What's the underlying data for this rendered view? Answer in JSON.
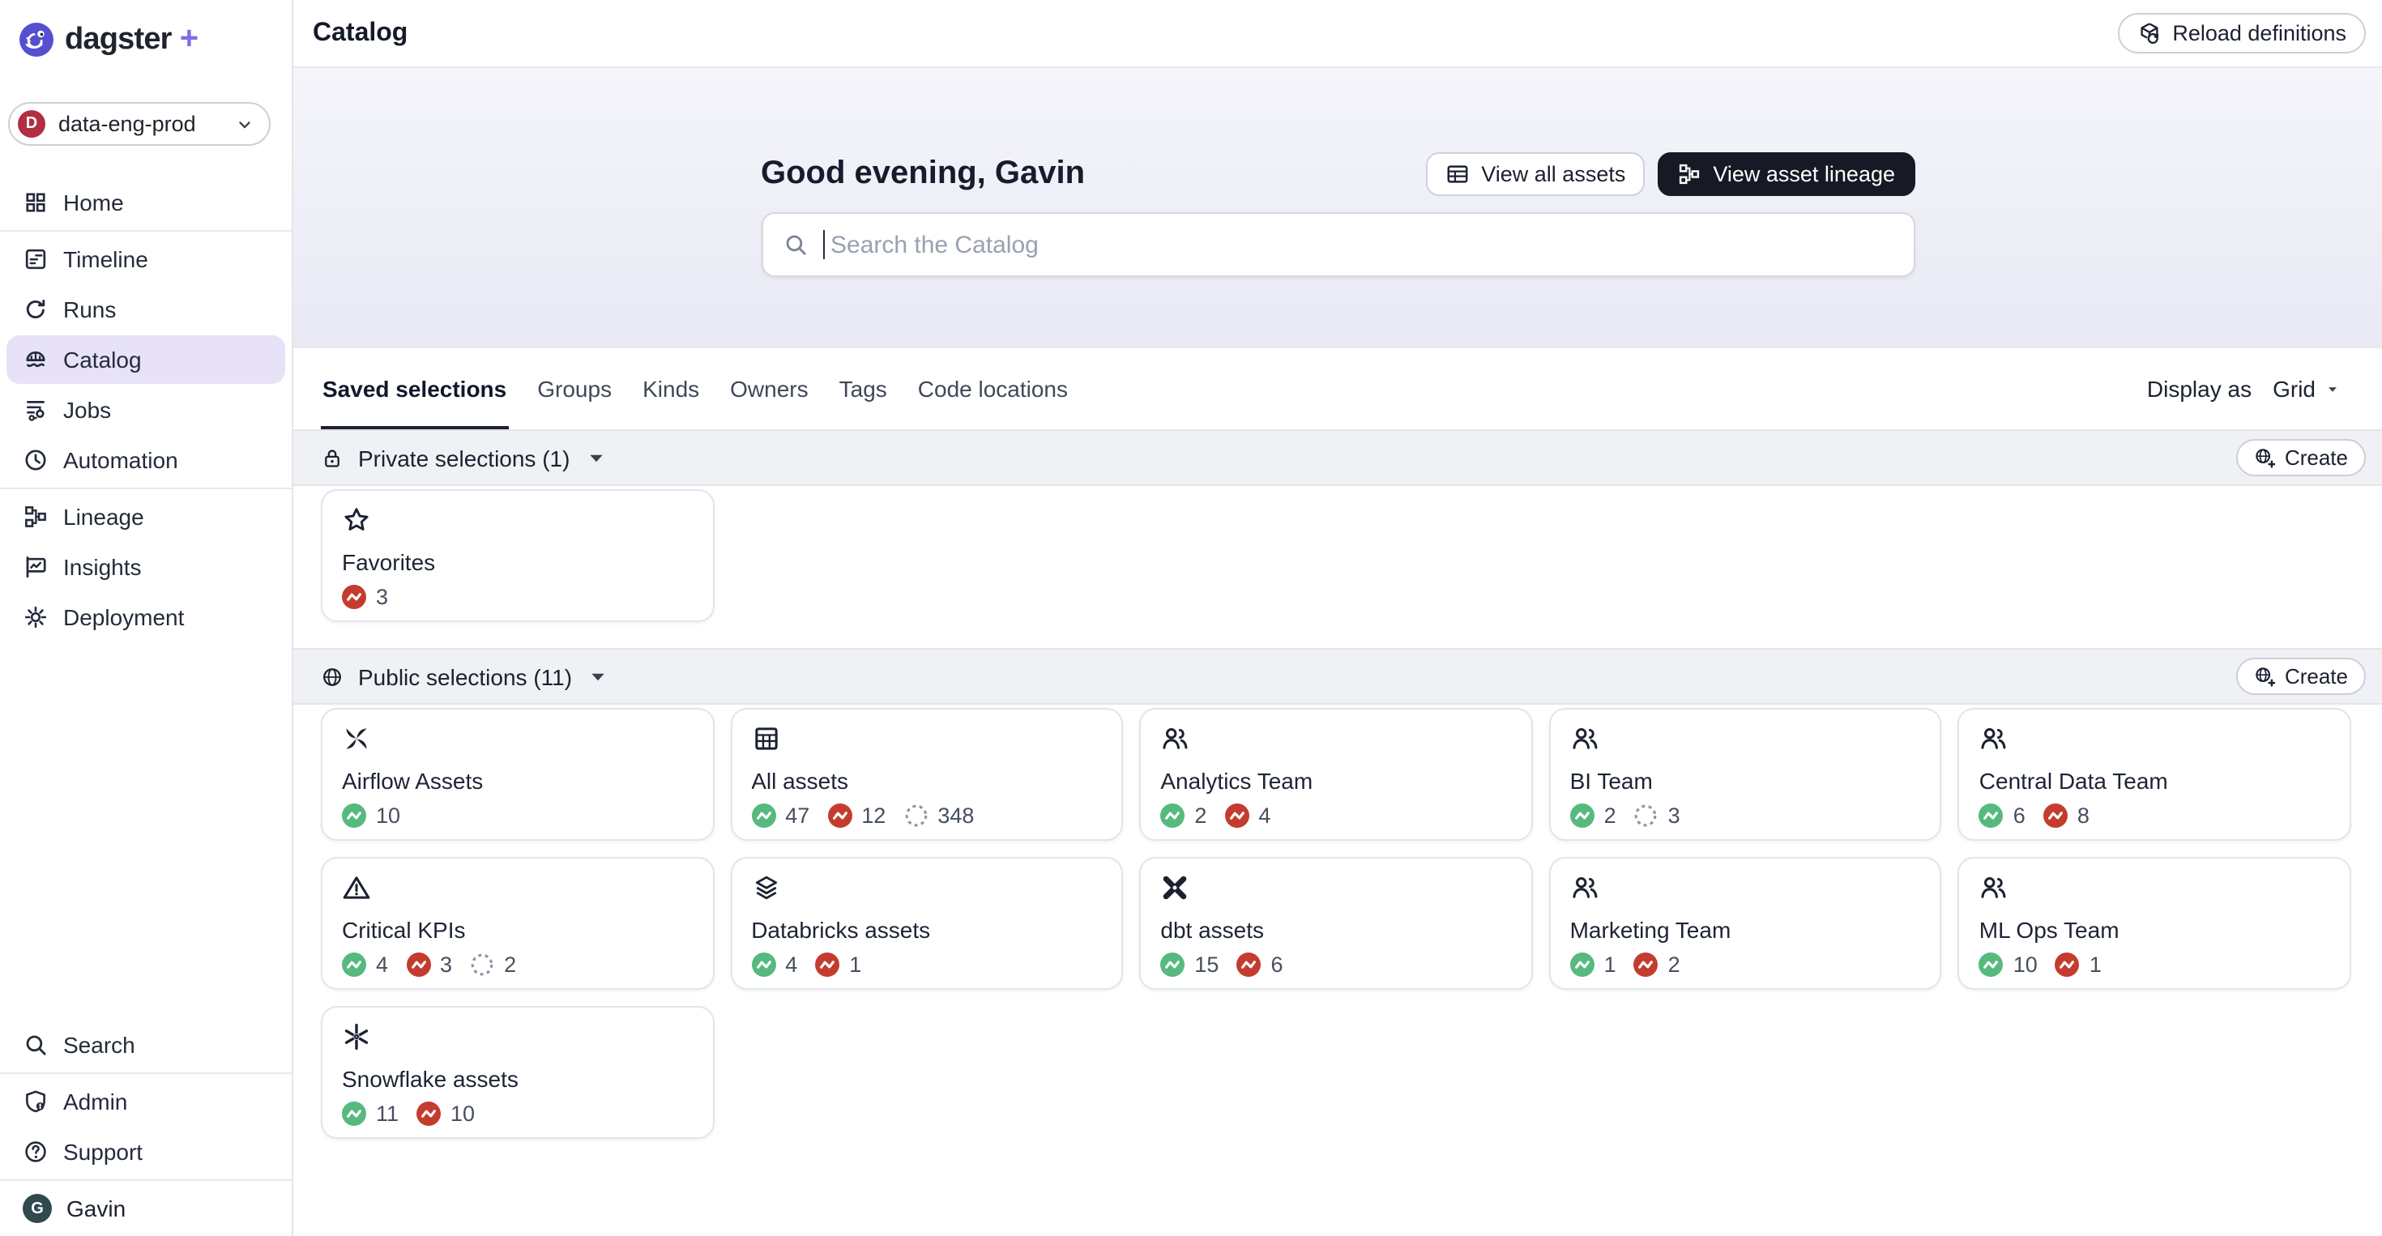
{
  "brand": {
    "name": "dagster",
    "plus": "+"
  },
  "deployment_switcher": {
    "label": "data-eng-prod",
    "avatar_letter": "D",
    "avatar_color": "#b32e40"
  },
  "sidebar": {
    "groups": [
      [
        {
          "label": "Home",
          "icon": "home"
        }
      ],
      [
        {
          "label": "Timeline",
          "icon": "timeline"
        },
        {
          "label": "Runs",
          "icon": "runs"
        },
        {
          "label": "Catalog",
          "icon": "catalog",
          "active": true
        },
        {
          "label": "Jobs",
          "icon": "jobs"
        },
        {
          "label": "Automation",
          "icon": "automation"
        }
      ],
      [
        {
          "label": "Lineage",
          "icon": "lineage"
        },
        {
          "label": "Insights",
          "icon": "insights"
        },
        {
          "label": "Deployment",
          "icon": "deployment"
        }
      ]
    ],
    "bottom_groups": [
      [
        {
          "label": "Search",
          "icon": "search"
        }
      ],
      [
        {
          "label": "Admin",
          "icon": "admin"
        },
        {
          "label": "Support",
          "icon": "support"
        }
      ]
    ],
    "user": {
      "name": "Gavin",
      "avatar_letter": "G",
      "avatar_color": "#30494e"
    }
  },
  "header": {
    "title": "Catalog",
    "reload_label": "Reload definitions"
  },
  "hero": {
    "greeting": "Good evening, Gavin",
    "view_all_assets_label": "View all assets",
    "view_asset_lineage_label": "View asset lineage",
    "search_placeholder": "Search the Catalog"
  },
  "tabs": {
    "items": [
      "Saved selections",
      "Groups",
      "Kinds",
      "Owners",
      "Tags",
      "Code locations"
    ],
    "active": "Saved selections",
    "display_as_label": "Display as",
    "display_as_value": "Grid"
  },
  "sections": [
    {
      "id": "private",
      "icon": "lock",
      "title": "Private selections (1)",
      "create_label": "Create",
      "cards": [
        {
          "title": "Favorites",
          "icon": "star",
          "statuses": [
            {
              "type": "failed",
              "count": 3
            }
          ]
        }
      ]
    },
    {
      "id": "public",
      "icon": "globe",
      "title": "Public selections (11)",
      "create_label": "Create",
      "cards": [
        {
          "title": "Airflow Assets",
          "icon": "airflow",
          "statuses": [
            {
              "type": "success",
              "count": 10
            }
          ]
        },
        {
          "title": "All assets",
          "icon": "table",
          "statuses": [
            {
              "type": "success",
              "count": 47
            },
            {
              "type": "failed",
              "count": 12
            },
            {
              "type": "none",
              "count": 348
            }
          ]
        },
        {
          "title": "Analytics Team",
          "icon": "team",
          "statuses": [
            {
              "type": "success",
              "count": 2
            },
            {
              "type": "failed",
              "count": 4
            }
          ]
        },
        {
          "title": "BI Team",
          "icon": "team",
          "statuses": [
            {
              "type": "success",
              "count": 2
            },
            {
              "type": "none",
              "count": 3
            }
          ]
        },
        {
          "title": "Central Data Team",
          "icon": "team",
          "statuses": [
            {
              "type": "success",
              "count": 6
            },
            {
              "type": "failed",
              "count": 8
            }
          ]
        },
        {
          "title": "Critical KPIs",
          "icon": "warning",
          "statuses": [
            {
              "type": "success",
              "count": 4
            },
            {
              "type": "failed",
              "count": 3
            },
            {
              "type": "none",
              "count": 2
            }
          ]
        },
        {
          "title": "Databricks assets",
          "icon": "layers",
          "statuses": [
            {
              "type": "success",
              "count": 4
            },
            {
              "type": "failed",
              "count": 1
            }
          ]
        },
        {
          "title": "dbt assets",
          "icon": "dbt",
          "statuses": [
            {
              "type": "success",
              "count": 15
            },
            {
              "type": "failed",
              "count": 6
            }
          ]
        },
        {
          "title": "Marketing Team",
          "icon": "team",
          "statuses": [
            {
              "type": "success",
              "count": 1
            },
            {
              "type": "failed",
              "count": 2
            }
          ]
        },
        {
          "title": "ML Ops Team",
          "icon": "team",
          "statuses": [
            {
              "type": "success",
              "count": 10
            },
            {
              "type": "failed",
              "count": 1
            }
          ]
        },
        {
          "title": "Snowflake assets",
          "icon": "snowflake",
          "statuses": [
            {
              "type": "success",
              "count": 11
            },
            {
              "type": "failed",
              "count": 10
            }
          ]
        }
      ]
    }
  ],
  "colors": {
    "accent_purple": "#7d6ee7",
    "active_nav_bg": "#e7e2f8",
    "dark_button_bg": "#171a24",
    "success_green": "#56ba7e",
    "failed_red": "#c43c2f",
    "never_materialized_gray": "#8d96a4"
  }
}
